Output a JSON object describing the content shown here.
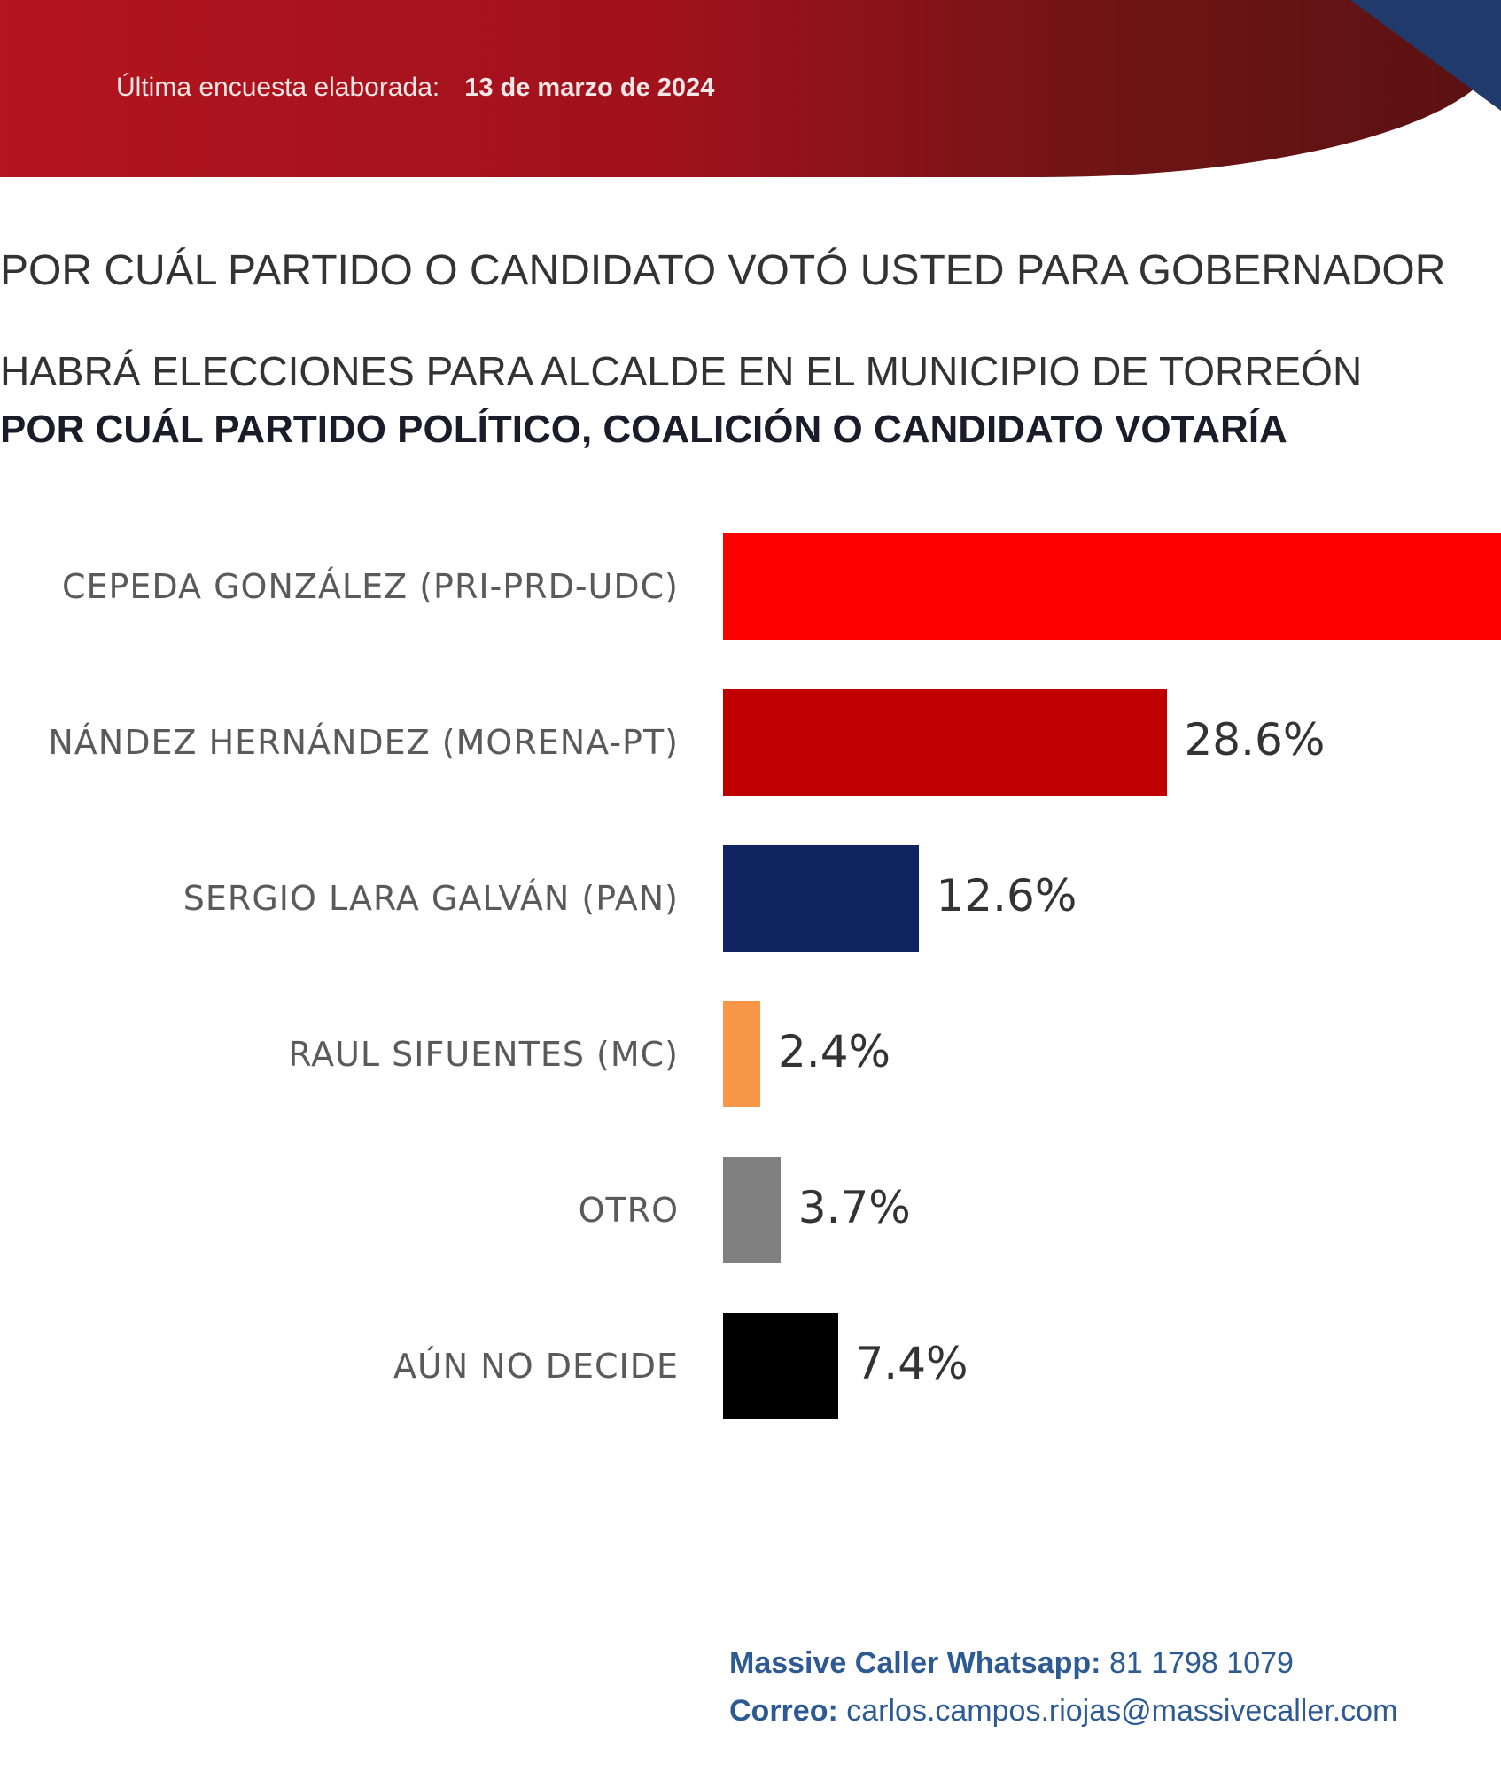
{
  "header": {
    "survey_label": "Última encuesta elaborada:",
    "survey_date": "13 de marzo de 2024"
  },
  "questions": [
    "POR CUÁL PARTIDO O CANDIDATO VOTÓ USTED PARA GOBERNADOR",
    "HABRÁ ELECCIONES PARA ALCALDE EN EL MUNICIPIO DE TORREÓN",
    "POR CUÁL PARTIDO POLÍTICO, COALICIÓN O CANDIDATO VOTARÍA"
  ],
  "chart_data": {
    "type": "bar",
    "orientation": "horizontal",
    "categories": [
      "CEPEDA GONZÁLEZ (PRI-PRD-UDC)",
      "NÁNDEZ HERNÁNDEZ (MORENA-PT)",
      "SERGIO LARA GALVÁN (PAN)",
      "RAUL SIFUENTES (MC)",
      "OTRO",
      "AÚN NO DECIDE"
    ],
    "values": [
      null,
      28.6,
      12.6,
      2.4,
      3.7,
      7.4
    ],
    "value_labels": [
      "",
      "28.6%",
      "12.6%",
      "2.4%",
      "3.7%",
      "7.4%"
    ],
    "colors": [
      "#ff0000",
      "#c00000",
      "#0f2461",
      "#f79646",
      "#808080",
      "#000000"
    ],
    "unit": "%",
    "title": "",
    "xlabel": "",
    "ylabel": ""
  },
  "footer": {
    "whatsapp_label": "Massive Caller Whatsapp:",
    "whatsapp_number": "81 1798 1079",
    "email_label": "Correo:",
    "email": "carlos.campos.riojas@massivecaller.com"
  }
}
